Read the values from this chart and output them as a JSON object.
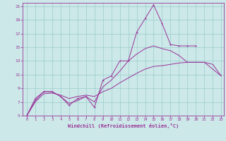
{
  "xlabel": "Windchill (Refroidissement éolien,°C)",
  "background_color": "#cce8e8",
  "grid_color": "#99cccc",
  "line_color": "#993399",
  "xlim": [
    0,
    23
  ],
  "ylim": [
    5,
    21.5
  ],
  "xticks": [
    0,
    1,
    2,
    3,
    4,
    5,
    6,
    7,
    8,
    9,
    10,
    11,
    12,
    13,
    14,
    15,
    16,
    17,
    18,
    19,
    20,
    21,
    22,
    23
  ],
  "yticks": [
    5,
    7,
    9,
    11,
    13,
    15,
    17,
    19,
    21
  ],
  "x_jagged": [
    0,
    1,
    2,
    3,
    4,
    5,
    6,
    7,
    8,
    9,
    10,
    11,
    12,
    13,
    14,
    15,
    16,
    17,
    18,
    19,
    20
  ],
  "y_jagged": [
    5.0,
    7.5,
    8.5,
    8.5,
    7.8,
    6.5,
    7.5,
    7.8,
    6.2,
    10.2,
    10.8,
    13.0,
    13.0,
    17.2,
    19.2,
    21.2,
    18.5,
    15.4,
    15.2,
    15.2,
    15.2
  ],
  "x_upper": [
    0,
    1,
    2,
    3,
    4,
    5,
    6,
    7,
    8,
    9,
    10,
    11,
    12,
    13,
    14,
    15,
    16,
    17,
    18,
    19,
    20,
    21,
    22,
    23
  ],
  "y_upper": [
    5.0,
    7.2,
    8.5,
    8.5,
    7.8,
    6.8,
    7.2,
    7.8,
    7.0,
    9.2,
    10.2,
    11.5,
    13.0,
    14.0,
    14.8,
    15.2,
    14.8,
    14.5,
    13.8,
    12.8,
    12.8,
    12.8,
    11.8,
    10.8
  ],
  "x_lower": [
    0,
    1,
    2,
    3,
    4,
    5,
    6,
    7,
    8,
    9,
    10,
    11,
    12,
    13,
    14,
    15,
    16,
    17,
    18,
    19,
    20,
    21,
    22,
    23
  ],
  "y_lower": [
    5.0,
    7.0,
    8.2,
    8.3,
    8.0,
    7.5,
    7.8,
    8.0,
    7.8,
    8.5,
    9.0,
    9.8,
    10.5,
    11.2,
    11.8,
    12.2,
    12.3,
    12.5,
    12.7,
    12.8,
    12.8,
    12.8,
    12.5,
    10.8
  ]
}
